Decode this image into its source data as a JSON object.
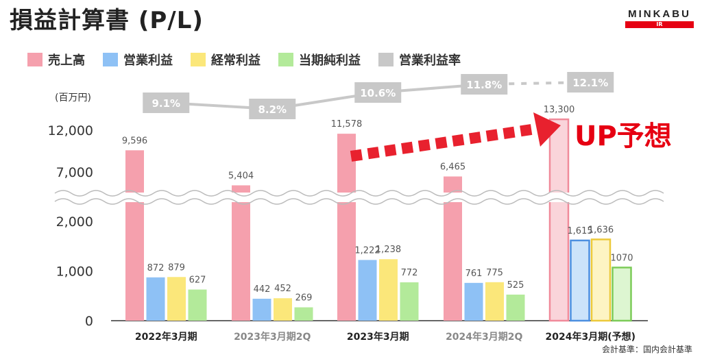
{
  "title": "損益計算書 (P/L)",
  "brand": {
    "name": "MINKABU",
    "sub": "IR"
  },
  "legend": [
    {
      "label": "売上高",
      "color": "#f5a0ad"
    },
    {
      "label": "営業利益",
      "color": "#8ec1f5"
    },
    {
      "label": "経常利益",
      "color": "#fbe77a"
    },
    {
      "label": "当期純利益",
      "color": "#b3ea9a"
    },
    {
      "label": "営業利益率",
      "color": "#c8c8c8"
    }
  ],
  "unit": "(百万円)",
  "annotation": "UP予想",
  "footnote": "会計基準：国内会計基準",
  "chart_data": {
    "type": "bar",
    "categories": [
      "2022年3月期",
      "2023年3月期2Q",
      "2023年3月期",
      "2024年3月期2Q",
      "2024年3月期(予想)"
    ],
    "category_colors": [
      "#222222",
      "#888888",
      "#222222",
      "#888888",
      "#222222"
    ],
    "series": [
      {
        "name": "売上高",
        "values": [
          9596,
          5404,
          11578,
          6465,
          13300
        ],
        "labels": [
          "9,596",
          "5,404",
          "11,578",
          "6,465",
          "13,300"
        ]
      },
      {
        "name": "営業利益",
        "values": [
          872,
          442,
          1222,
          761,
          1615
        ],
        "labels": [
          "872",
          "442",
          "1,222",
          "761",
          "1,615"
        ]
      },
      {
        "name": "経常利益",
        "values": [
          879,
          452,
          1238,
          775,
          1636
        ],
        "labels": [
          "879",
          "452",
          "1,238",
          "775",
          "1,636"
        ]
      },
      {
        "name": "当期純利益",
        "values": [
          627,
          269,
          772,
          525,
          1070
        ],
        "labels": [
          "627",
          "269",
          "772",
          "525",
          "1070"
        ]
      }
    ],
    "margin_series": {
      "name": "営業利益率",
      "values": [
        9.1,
        8.2,
        10.6,
        11.8,
        12.1
      ],
      "labels": [
        "9.1%",
        "8.2%",
        "10.6%",
        "11.8%",
        "12.1%"
      ]
    },
    "forecast_index": 4,
    "yticks": [
      "0",
      "1,000",
      "2,000",
      "7,000",
      "12,000"
    ],
    "axis_break": true
  }
}
